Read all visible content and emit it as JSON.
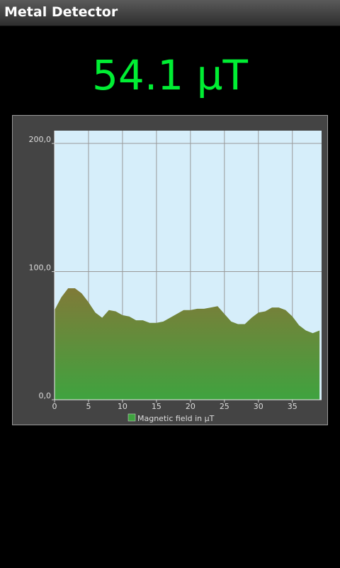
{
  "app_bar": {
    "title": "Metal Detector"
  },
  "reading": "54.1 µT",
  "chart_data": {
    "type": "area",
    "x": [
      0,
      1,
      2,
      3,
      4,
      5,
      6,
      7,
      8,
      9,
      10,
      11,
      12,
      13,
      14,
      15,
      16,
      17,
      18,
      19,
      20,
      21,
      22,
      23,
      24,
      25,
      26,
      27,
      28,
      29,
      30,
      31,
      32,
      33,
      34,
      35,
      36,
      37,
      38,
      39
    ],
    "series": [
      {
        "name": "Magnetic field in µT",
        "color": "#3fa33f",
        "values": [
          70,
          80,
          87,
          87,
          83,
          76,
          68,
          64,
          70,
          69,
          66,
          65,
          62,
          62,
          60,
          60,
          61,
          64,
          67,
          70,
          70,
          71,
          71,
          72,
          73,
          67,
          61,
          59,
          59,
          64,
          68,
          69,
          72,
          72,
          70,
          65,
          58,
          54,
          52,
          54
        ]
      }
    ],
    "xlim": [
      0,
      39.3
    ],
    "ylim": [
      0,
      210
    ],
    "xticks": [
      0,
      5,
      10,
      15,
      20,
      25,
      30,
      35
    ],
    "yticks": [
      {
        "value": 0,
        "label": "0,0"
      },
      {
        "value": 100,
        "label": "100,0"
      },
      {
        "value": 200,
        "label": "200,0"
      }
    ],
    "grid": true
  }
}
